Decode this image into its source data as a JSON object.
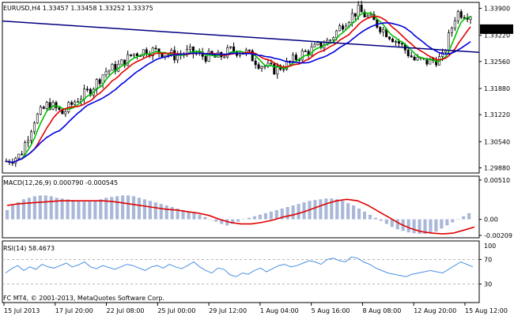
{
  "colors": {
    "background": "#ffffff",
    "frame": "#000000",
    "grid": "#c0c0c0",
    "candle": "#000000",
    "ma_fast": "#00c000",
    "ma_mid": "#e00000",
    "ma_slow": "#0000e0",
    "trendline": "#000080",
    "macd_hist": "#aab8d8",
    "macd_signal": "#e00000",
    "rsi_line": "#4a90e2",
    "rsi_level": "#a0a0a0",
    "price_tag_bg": "#000000",
    "price_tag_fg": "#ffffff"
  },
  "chart_data": [
    {
      "type": "candlestick",
      "title": "EURUSD,H4  1.33457 1.33458 1.33252 1.33375",
      "symbol": "EURUSD",
      "timeframe": "H4",
      "last_ohlc": [
        1.33457,
        1.33458,
        1.33252,
        1.33375
      ],
      "current_price_label": "1.33375",
      "y_ticks": [
        "1.33900",
        "1.33220",
        "1.32560",
        "1.31880",
        "1.31220",
        "1.30540",
        "1.29880"
      ],
      "ylim": [
        1.2975,
        1.3405
      ],
      "grid": false,
      "overlays": [
        "moving average (green)",
        "moving average (red)",
        "moving average (blue)",
        "trend line"
      ],
      "approx_close_path": [
        1.3005,
        1.302,
        1.311,
        1.315,
        1.3125,
        1.316,
        1.3185,
        1.323,
        1.3245,
        1.3275,
        1.3285,
        1.328,
        1.327,
        1.328,
        1.327,
        1.3265,
        1.3285,
        1.328,
        1.325,
        1.3235,
        1.325,
        1.3275,
        1.329,
        1.331,
        1.3355,
        1.3385,
        1.336,
        1.333,
        1.33,
        1.326,
        1.3255,
        1.3265,
        1.338,
        1.3375
      ]
    },
    {
      "type": "bar",
      "title": "MACD(12,26,9) 0.000790 -0.000545",
      "y_ticks": [
        "0.00510",
        "0.00",
        "-0.00209"
      ],
      "ylim": [
        -0.0024,
        0.0056
      ],
      "histogram": [
        0.0012,
        0.0018,
        0.0022,
        0.0026,
        0.0028,
        0.003,
        0.0031,
        0.0031,
        0.003,
        0.0028,
        0.0027,
        0.0026,
        0.0025,
        0.0024,
        0.0023,
        0.0023,
        0.0024,
        0.0026,
        0.0028,
        0.0029,
        0.003,
        0.0031,
        0.0031,
        0.003,
        0.0028,
        0.0026,
        0.0024,
        0.0022,
        0.002,
        0.0018,
        0.0016,
        0.0014,
        0.0012,
        0.001,
        0.0008,
        0.0006,
        0.0003,
        0.0,
        -0.0003,
        -0.0006,
        -0.0008,
        -0.0006,
        -0.0003,
        0.0,
        0.0002,
        0.0004,
        0.0006,
        0.0008,
        0.001,
        0.0012,
        0.0014,
        0.0016,
        0.0018,
        0.002,
        0.0022,
        0.0024,
        0.0025,
        0.0026,
        0.0027,
        0.0027,
        0.0026,
        0.0024,
        0.0021,
        0.0018,
        0.0014,
        0.001,
        0.0006,
        0.0002,
        -0.0002,
        -0.0006,
        -0.001,
        -0.0013,
        -0.0015,
        -0.0017,
        -0.0018,
        -0.0019,
        -0.0019,
        -0.0018,
        -0.0016,
        -0.0012,
        -0.0008,
        -0.0004,
        0.0,
        0.0004,
        0.0008
      ],
      "signal": [
        0.0018,
        0.002,
        0.0021,
        0.0022,
        0.0023,
        0.0024,
        0.0024,
        0.0024,
        0.0024,
        0.0024,
        0.0023,
        0.0021,
        0.0019,
        0.0017,
        0.0015,
        0.0013,
        0.0012,
        0.001,
        0.0008,
        0.0005,
        0.0,
        -0.0004,
        -0.0006,
        -0.0006,
        -0.0004,
        -0.0001,
        0.0003,
        0.0006,
        0.001,
        0.0015,
        0.002,
        0.0024,
        0.0026,
        0.0024,
        0.0018,
        0.001,
        0.0002,
        -0.0006,
        -0.0012,
        -0.0016,
        -0.0018,
        -0.0019,
        -0.0018,
        -0.0014,
        -0.001
      ],
      "signal_start": 0.0
    },
    {
      "type": "line",
      "title": "RSI(14) 58.4673",
      "y_ticks": [
        "70",
        "30"
      ],
      "y_top_label": "100",
      "ylim": [
        0,
        100
      ],
      "levels": [
        70,
        30
      ],
      "values": [
        48,
        55,
        60,
        52,
        58,
        54,
        62,
        58,
        56,
        60,
        64,
        58,
        61,
        66,
        58,
        55,
        60,
        57,
        54,
        58,
        62,
        60,
        56,
        52,
        58,
        60,
        56,
        62,
        58,
        55,
        60,
        66,
        58,
        52,
        48,
        56,
        54,
        45,
        42,
        48,
        46,
        52,
        56,
        50,
        55,
        60,
        62,
        58,
        60,
        64,
        68,
        66,
        62,
        70,
        72,
        68,
        66,
        74,
        72,
        66,
        62,
        56,
        52,
        48,
        46,
        44,
        42,
        46,
        48,
        50,
        52,
        50,
        48,
        54,
        60,
        66,
        62,
        58
      ],
      "x_tick_labels": [
        "15 Jul 2013",
        "17 Jul 20:00",
        "22 Jul 08:00",
        "25 Jul 00:00",
        "29 Jul 12:00",
        "1 Aug 04:00",
        "5 Aug 16:00",
        "8 Aug 08:00",
        "12 Aug 20:00",
        "15 Aug 12:00"
      ]
    }
  ],
  "footer": "FC MT4, © 2001-2013, MetaQuotes Software Corp."
}
